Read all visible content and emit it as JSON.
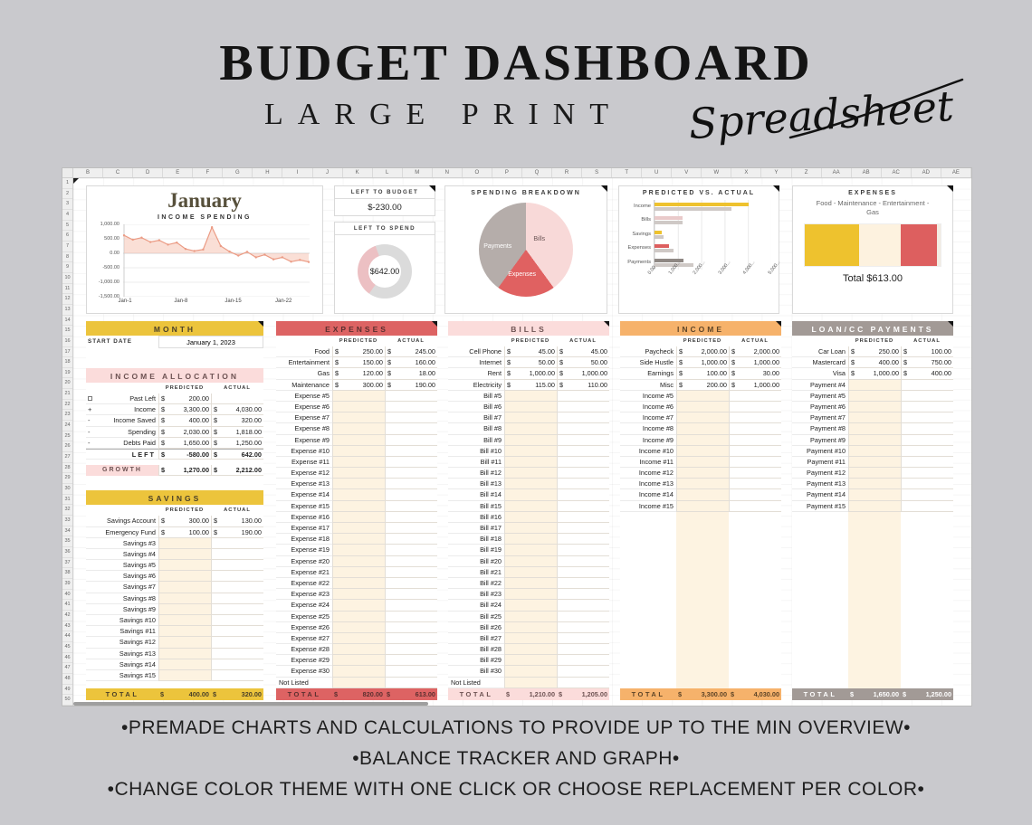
{
  "header": {
    "title": "BUDGET DASHBOARD",
    "subtitle": "LARGE PRINT",
    "script_word": "Spreadsheet"
  },
  "footer": {
    "lines": [
      "•PREMADE CHARTS AND CALCULATIONS TO PROVIDE UP TO THE MIN OVERVIEW•",
      "•BALANCE TRACKER AND GRAPH•",
      "•CHANGE COLOR THEME WITH ONE CLICK OR CHOOSE REPLACEMENT PER COLOR•"
    ]
  },
  "sheet": {
    "columns": [
      "B",
      "C",
      "D",
      "E",
      "F",
      "G",
      "H",
      "I",
      "J",
      "K",
      "L",
      "M",
      "N",
      "O",
      "P",
      "Q",
      "R",
      "S",
      "T",
      "U",
      "V",
      "W",
      "X",
      "Y",
      "Z",
      "AA",
      "AB",
      "AC",
      "AD",
      "AE"
    ],
    "row_count": 50
  },
  "themes": {
    "yellow": {
      "bg": "#ecc43c",
      "text": "#4a4028"
    },
    "red": {
      "bg": "#dd6363",
      "text": "#5a2f2f"
    },
    "pink": {
      "bg": "#fbdcdb",
      "text": "#6d5252"
    },
    "orange": {
      "bg": "#f6b26b",
      "text": "#5d4427"
    },
    "gray": {
      "bg": "#a29a96",
      "text": "#ffffff"
    }
  },
  "dashboard": {
    "month_title": "January",
    "income_spending": {
      "type": "line",
      "title": "INCOME SPENDING",
      "x_labels": [
        "Jan-1",
        "Jan-8",
        "Jan-15",
        "Jan-22"
      ],
      "y_ticks": [
        "1,000.00",
        "500.00",
        "0.00",
        "-500.00",
        "-1,000.00",
        "-1,500.00"
      ],
      "y_max": 1000,
      "y_min": -1500,
      "values": [
        620,
        470,
        540,
        390,
        450,
        300,
        370,
        150,
        80,
        130,
        900,
        250,
        60,
        -80,
        50,
        -140,
        -50,
        -210,
        -140,
        -290,
        -230,
        -300
      ],
      "line_color": "#eb9b84",
      "fill_color": "#f6c0ad",
      "fill_opacity": 0.5
    },
    "left_to_budget": {
      "title": "LEFT TO BUDGET",
      "value": "$-230.00"
    },
    "left_to_spend": {
      "title": "LEFT TO SPEND",
      "center_value": "$642.00",
      "segments": [
        {
          "name": "spent",
          "deg": 125,
          "color": "#ecc0c3"
        },
        {
          "name": "remaining",
          "deg": 235,
          "color": "#dbdbdb"
        }
      ]
    },
    "spending_breakdown": {
      "title": "SPENDING BREAKDOWN",
      "type": "pie",
      "slices": [
        {
          "label": "Bills",
          "pct": 40,
          "color": "#f8d9d8",
          "label_color": "#6b5555"
        },
        {
          "label": "Expenses",
          "pct": 20,
          "color": "#e06161",
          "label_color": "#ffffff"
        },
        {
          "label": "Payments",
          "pct": 40,
          "color": "#b5adaa",
          "label_color": "#ffffff"
        }
      ]
    },
    "predicted_vs_actual": {
      "title": "PREDICTED VS. ACTUAL",
      "type": "bar",
      "categories": [
        "Income",
        "Bills",
        "Savings",
        "Expenses",
        "Payments"
      ],
      "series": [
        {
          "name": "Actual",
          "values": [
            4030,
            1205,
            320,
            613,
            1250
          ]
        },
        {
          "name": "Predicted",
          "values": [
            3300,
            1210,
            400,
            820,
            1650
          ]
        }
      ],
      "actual_colors": [
        "#eec22e",
        "#e9caca",
        "#eec22e",
        "#dd5f5f",
        "#8f8884"
      ],
      "predicted_color": "#cfc9c6",
      "x_ticks": [
        "0.00",
        "1,000...",
        "2,000...",
        "3,000...",
        "4,000...",
        "5,000..."
      ],
      "x_max": 5000
    },
    "expenses_summary": {
      "title": "EXPENSES",
      "subtitle": "Food - Maintenance - Entertainment - Gas",
      "total_label": "Total $613.00",
      "segments": [
        {
          "label": "Food",
          "value": 245,
          "color": "#eec22e"
        },
        {
          "label": "Maintenance",
          "value": 190,
          "color": "#fdf2df"
        },
        {
          "label": "Entertainment",
          "value": 160,
          "color": "#dd5f5f"
        },
        {
          "label": "Gas",
          "value": 18,
          "color": "#f3ece2"
        }
      ]
    }
  },
  "panels": {
    "month_block": {
      "title": "MONTH",
      "start_date_label": "START DATE",
      "start_date_value": "January 1, 2023"
    },
    "income_allocation": {
      "title": "INCOME ALLOCATION",
      "col_headers": [
        "PREDICTED",
        "ACTUAL"
      ],
      "rows": [
        {
          "prefix": "checkbox",
          "label": "Past Left",
          "predicted": "200.00"
        },
        {
          "prefix": "+",
          "label": "Income",
          "predicted": "3,300.00",
          "actual": "4,030.00"
        },
        {
          "prefix": "-",
          "label": "Income Saved",
          "predicted": "400.00",
          "actual": "320.00"
        },
        {
          "prefix": "-",
          "label": "Spending",
          "predicted": "2,030.00",
          "actual": "1,818.00"
        },
        {
          "prefix": "-",
          "label": "Debts Paid",
          "predicted": "1,650.00",
          "actual": "1,250.00"
        },
        {
          "label": "LEFT",
          "predicted": "-580.00",
          "actual": "642.00",
          "emphasis": true
        }
      ],
      "growth_row": {
        "label": "GROWTH",
        "predicted": "1,270.00",
        "actual": "2,212.00"
      }
    },
    "savings": {
      "title": "SAVINGS",
      "col_headers": [
        "PREDICTED",
        "ACTUAL"
      ],
      "rows": [
        {
          "label": "Savings Account",
          "predicted": "300.00",
          "actual": "130.00"
        },
        {
          "label": "Emergency Fund",
          "predicted": "100.00",
          "actual": "190.00"
        },
        {
          "label": "Savings #3"
        },
        {
          "label": "Savings #4"
        },
        {
          "label": "Savings #5"
        },
        {
          "label": "Savings #6"
        },
        {
          "label": "Savings #7"
        },
        {
          "label": "Savings #8"
        },
        {
          "label": "Savings #9"
        },
        {
          "label": "Savings #10"
        },
        {
          "label": "Savings #11"
        },
        {
          "label": "Savings #12"
        },
        {
          "label": "Savings #13"
        },
        {
          "label": "Savings #14"
        },
        {
          "label": "Savings #15"
        }
      ],
      "total": {
        "label": "TOTAL",
        "predicted": "400.00",
        "actual": "320.00"
      }
    },
    "expenses": {
      "title": "EXPENSES",
      "col_headers": [
        "PREDICTED",
        "ACTUAL"
      ],
      "rows": [
        {
          "label": "Food",
          "predicted": "250.00",
          "actual": "245.00"
        },
        {
          "label": "Entertainment",
          "predicted": "150.00",
          "actual": "160.00"
        },
        {
          "label": "Gas",
          "predicted": "120.00",
          "actual": "18.00"
        },
        {
          "label": "Maintenance",
          "predicted": "300.00",
          "actual": "190.00"
        },
        {
          "label": "Expense #5"
        },
        {
          "label": "Expense #6"
        },
        {
          "label": "Expense #7"
        },
        {
          "label": "Expense #8"
        },
        {
          "label": "Expense #9"
        },
        {
          "label": "Expense #10"
        },
        {
          "label": "Expense #11"
        },
        {
          "label": "Expense #12"
        },
        {
          "label": "Expense #13"
        },
        {
          "label": "Expense #14"
        },
        {
          "label": "Expense #15"
        },
        {
          "label": "Expense #16"
        },
        {
          "label": "Expense #17"
        },
        {
          "label": "Expense #18"
        },
        {
          "label": "Expense #19"
        },
        {
          "label": "Expense #20"
        },
        {
          "label": "Expense #21"
        },
        {
          "label": "Expense #22"
        },
        {
          "label": "Expense #23"
        },
        {
          "label": "Expense #24"
        },
        {
          "label": "Expense #25"
        },
        {
          "label": "Expense #26"
        },
        {
          "label": "Expense #27"
        },
        {
          "label": "Expense #28"
        },
        {
          "label": "Expense #29"
        },
        {
          "label": "Expense #30"
        }
      ],
      "not_listed_label": "Not Listed",
      "total": {
        "label": "TOTAL",
        "predicted": "820.00",
        "actual": "613.00"
      }
    },
    "bills": {
      "title": "BILLS",
      "col_headers": [
        "PREDICTED",
        "ACTUAL"
      ],
      "rows": [
        {
          "label": "Cell Phone",
          "predicted": "45.00",
          "actual": "45.00"
        },
        {
          "label": "Internet",
          "predicted": "50.00",
          "actual": "50.00"
        },
        {
          "label": "Rent",
          "predicted": "1,000.00",
          "actual": "1,000.00"
        },
        {
          "label": "Electricity",
          "predicted": "115.00",
          "actual": "110.00"
        },
        {
          "label": "Bill #5"
        },
        {
          "label": "Bill #6"
        },
        {
          "label": "Bill #7"
        },
        {
          "label": "Bill #8"
        },
        {
          "label": "Bill #9"
        },
        {
          "label": "Bill #10"
        },
        {
          "label": "Bill #11"
        },
        {
          "label": "Bill #12"
        },
        {
          "label": "Bill #13"
        },
        {
          "label": "Bill #14"
        },
        {
          "label": "Bill #15"
        },
        {
          "label": "Bill #16"
        },
        {
          "label": "Bill #17"
        },
        {
          "label": "Bill #18"
        },
        {
          "label": "Bill #19"
        },
        {
          "label": "Bill #20"
        },
        {
          "label": "Bill #21"
        },
        {
          "label": "Bill #22"
        },
        {
          "label": "Bill #23"
        },
        {
          "label": "Bill #24"
        },
        {
          "label": "Bill #25"
        },
        {
          "label": "Bill #26"
        },
        {
          "label": "Bill #27"
        },
        {
          "label": "Bill #28"
        },
        {
          "label": "Bill #29"
        },
        {
          "label": "Bill #30"
        }
      ],
      "not_listed_label": "Not Listed",
      "total": {
        "label": "TOTAL",
        "predicted": "1,210.00",
        "actual": "1,205.00"
      }
    },
    "income": {
      "title": "INCOME",
      "col_headers": [
        "PREDICTED",
        "ACTUAL"
      ],
      "rows": [
        {
          "label": "Paycheck",
          "predicted": "2,000.00",
          "actual": "2,000.00"
        },
        {
          "label": "Side Hustle",
          "predicted": "1,000.00",
          "actual": "1,000.00"
        },
        {
          "label": "Earnings",
          "predicted": "100.00",
          "actual": "30.00"
        },
        {
          "label": "Misc",
          "predicted": "200.00",
          "actual": "1,000.00"
        },
        {
          "label": "Income #5"
        },
        {
          "label": "Income #6"
        },
        {
          "label": "Income #7"
        },
        {
          "label": "Income #8"
        },
        {
          "label": "Income #9"
        },
        {
          "label": "Income #10"
        },
        {
          "label": "Income #11"
        },
        {
          "label": "Income #12"
        },
        {
          "label": "Income #13"
        },
        {
          "label": "Income #14"
        },
        {
          "label": "Income #15"
        }
      ],
      "total": {
        "label": "TOTAL",
        "predicted": "3,300.00",
        "actual": "4,030.00"
      }
    },
    "loan": {
      "title": "LOAN/CC PAYMENTS",
      "col_headers": [
        "PREDICTED",
        "ACTUAL"
      ],
      "rows": [
        {
          "label": "Car Loan",
          "predicted": "250.00",
          "actual": "100.00"
        },
        {
          "label": "Mastercard",
          "predicted": "400.00",
          "actual": "750.00"
        },
        {
          "label": "Visa",
          "predicted": "1,000.00",
          "actual": "400.00"
        },
        {
          "label": "Payment #4"
        },
        {
          "label": "Payment #5"
        },
        {
          "label": "Payment #6"
        },
        {
          "label": "Payment #7"
        },
        {
          "label": "Payment #8"
        },
        {
          "label": "Payment #9"
        },
        {
          "label": "Payment #10"
        },
        {
          "label": "Payment #11"
        },
        {
          "label": "Payment #12"
        },
        {
          "label": "Payment #13"
        },
        {
          "label": "Payment #14"
        },
        {
          "label": "Payment #15"
        }
      ],
      "total": {
        "label": "TOTAL",
        "predicted": "1,650.00",
        "actual": "1,250.00"
      }
    }
  }
}
